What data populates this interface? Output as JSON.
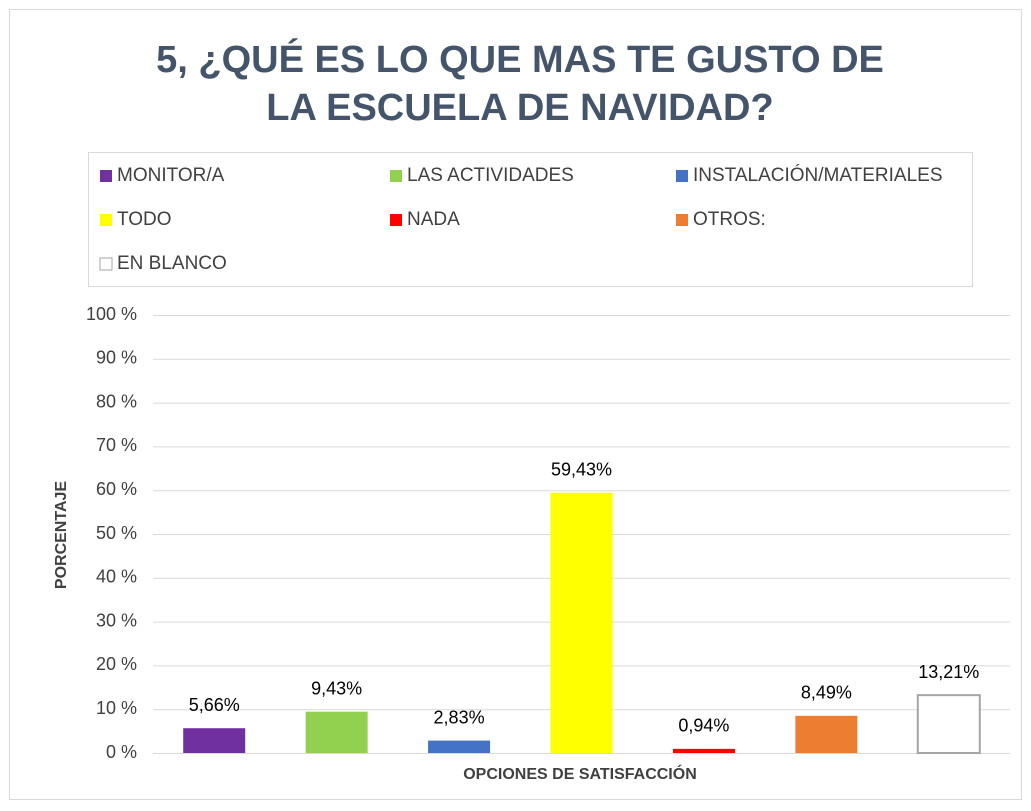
{
  "chart_data": {
    "type": "bar",
    "title": "5, ¿QUÉ ES LO QUE MAS TE GUSTO DE LA ESCUELA DE NAVIDAD?",
    "xlabel": "OPCIONES DE SATISFACCIÓN",
    "ylabel": "PORCENTAJE",
    "categories": [
      null
    ],
    "series": [
      {
        "name": "MONITOR/A",
        "color": "#7030a0",
        "values": [
          5.66
        ],
        "value_labels": [
          "5,66%"
        ]
      },
      {
        "name": "LAS ACTIVIDADES",
        "color": "#92d050",
        "values": [
          9.43
        ],
        "value_labels": [
          "9,43%"
        ]
      },
      {
        "name": "INSTALACIÓN/MATERIALES",
        "color": "#4472c4",
        "values": [
          2.83
        ],
        "value_labels": [
          "2,83%"
        ]
      },
      {
        "name": "TODO",
        "color": "#ffff00",
        "values": [
          59.43
        ],
        "value_labels": [
          "59,43%"
        ]
      },
      {
        "name": "NADA",
        "color": "#ff0000",
        "values": [
          0.94
        ],
        "value_labels": [
          "0,94%"
        ]
      },
      {
        "name": "OTROS:",
        "color": "#ed7d31",
        "values": [
          8.49
        ],
        "value_labels": [
          "8,49%"
        ]
      },
      {
        "name": "EN BLANCO",
        "color": "#ffffff",
        "edgecolor": "#a5a5a5",
        "values": [
          13.21
        ],
        "value_labels": [
          "13,21%"
        ]
      }
    ],
    "ylim": [
      0,
      100
    ],
    "yticks": [
      {
        "value": 0,
        "label": "0 %"
      },
      {
        "value": 10,
        "label": "10 %"
      },
      {
        "value": 20,
        "label": "20 %"
      },
      {
        "value": 30,
        "label": "30 %"
      },
      {
        "value": 40,
        "label": "40 %"
      },
      {
        "value": 50,
        "label": "50 %"
      },
      {
        "value": 60,
        "label": "60 %"
      },
      {
        "value": 70,
        "label": "70 %"
      },
      {
        "value": 80,
        "label": "80 %"
      },
      {
        "value": 90,
        "label": "90 %"
      },
      {
        "value": 100,
        "label": "100 %"
      }
    ],
    "grid": true,
    "legend": "top"
  }
}
